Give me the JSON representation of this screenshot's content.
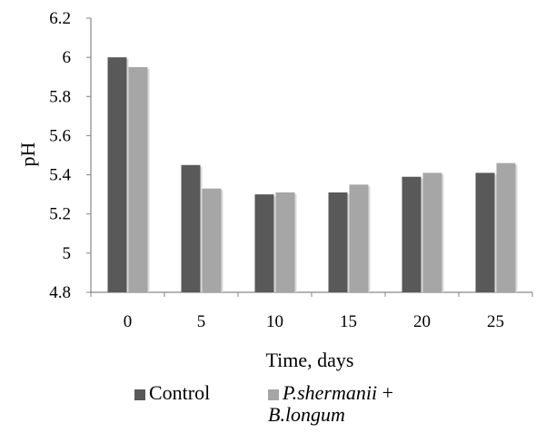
{
  "chart_data": {
    "type": "bar",
    "categories": [
      "0",
      "5",
      "10",
      "15",
      "20",
      "25"
    ],
    "series": [
      {
        "name": "Control",
        "values": [
          6.0,
          5.45,
          5.3,
          5.31,
          5.39,
          5.41
        ],
        "color": "#595959"
      },
      {
        "name_part1": "P.shermanii",
        "name_part2": "+",
        "name_part3": "B.longum",
        "values": [
          5.95,
          5.33,
          5.31,
          5.35,
          5.41,
          5.46
        ],
        "color": "#a6a6a6"
      }
    ],
    "ylim": [
      4.8,
      6.2
    ],
    "yticks": [
      "4.8",
      "5",
      "5.2",
      "5.4",
      "5.6",
      "5.8",
      "6",
      "6.2"
    ],
    "xlabel": "Time, days",
    "ylabel": "pH",
    "grid": false,
    "legend": "bottom"
  }
}
